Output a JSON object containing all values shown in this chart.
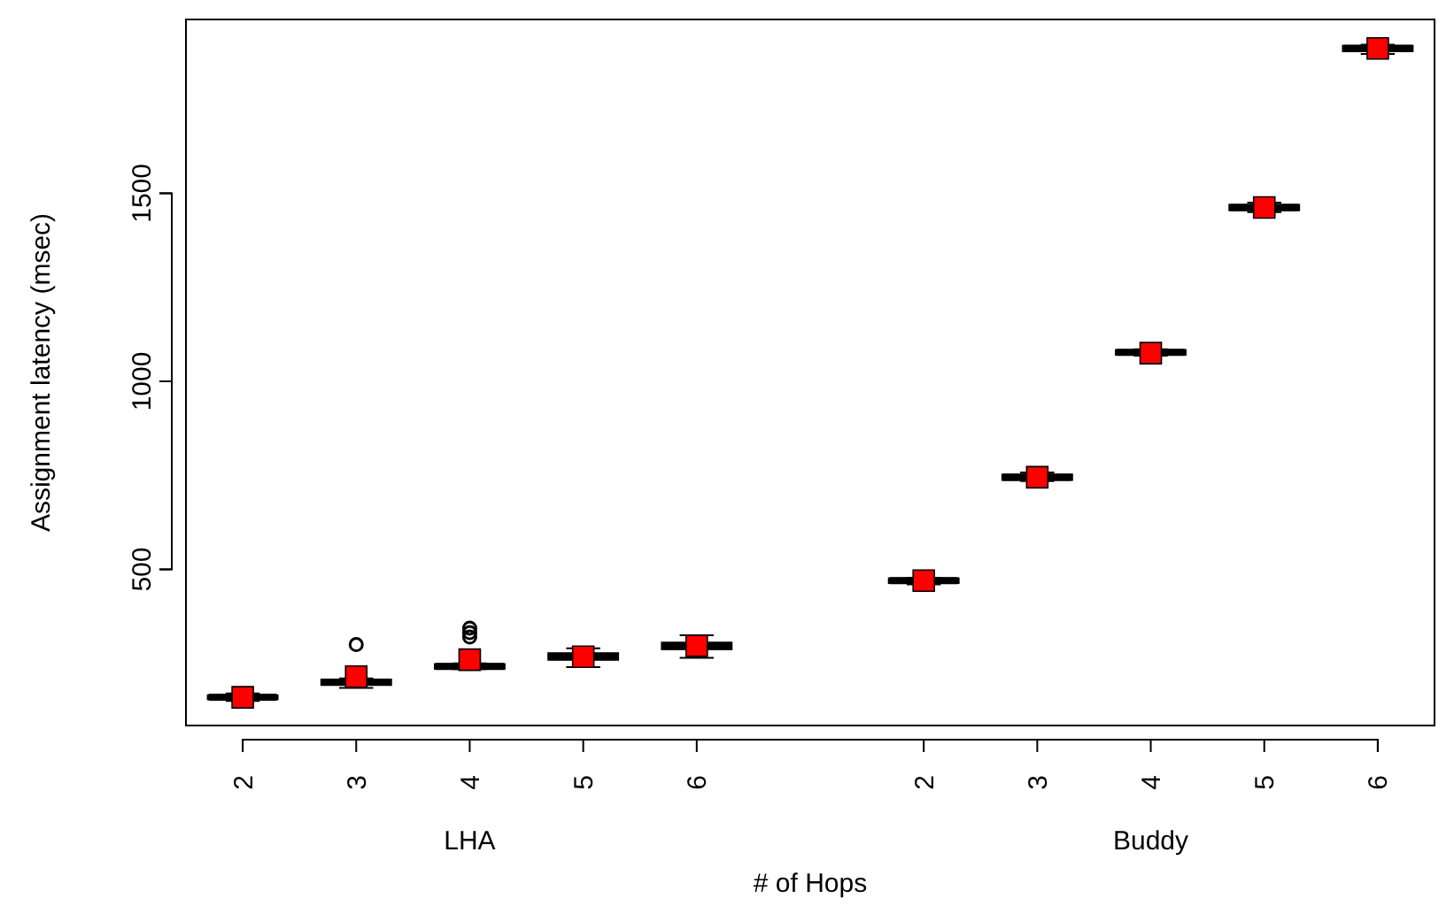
{
  "chart_data": {
    "type": "box",
    "xlabel": "# of Hops",
    "ylabel": "Assignment latency (msec)",
    "categories": [
      "2",
      "3",
      "4",
      "5",
      "6",
      null,
      "2",
      "3",
      "4",
      "5",
      "6"
    ],
    "annotations": [
      "LHA",
      "Buddy"
    ],
    "ylim": [
      85,
      1962
    ],
    "yticks": [
      500,
      1000,
      1500
    ],
    "marker": "square",
    "grid": false,
    "boxes": [
      {
        "low": 150,
        "q1": 157,
        "median": 160,
        "q3": 163,
        "high": 170,
        "mean": 160
      },
      {
        "low": 185,
        "q1": 195,
        "median": 200,
        "q3": 205,
        "high": 210,
        "mean": 215,
        "outliers": [
          300
        ]
      },
      {
        "low": 235,
        "q1": 238,
        "median": 242,
        "q3": 246,
        "high": 250,
        "mean": 260,
        "outliers": [
          320,
          332,
          344
        ]
      },
      {
        "low": 240,
        "q1": 262,
        "median": 268,
        "q3": 275,
        "high": 290,
        "mean": 268
      },
      {
        "low": 265,
        "q1": 290,
        "median": 297,
        "q3": 303,
        "high": 325,
        "mean": 297
      },
      null,
      {
        "low": 460,
        "q1": 466,
        "median": 470,
        "q3": 474,
        "high": 478,
        "mean": 470
      },
      {
        "low": 735,
        "q1": 740,
        "median": 745,
        "q3": 750,
        "high": 758,
        "mean": 745
      },
      {
        "low": 1068,
        "q1": 1073,
        "median": 1077,
        "q3": 1081,
        "high": 1085,
        "mean": 1075
      },
      {
        "low": 1450,
        "q1": 1457,
        "median": 1462,
        "q3": 1467,
        "high": 1475,
        "mean": 1462
      },
      {
        "low": 1870,
        "q1": 1880,
        "median": 1885,
        "q3": 1890,
        "high": 1895,
        "mean": 1885
      }
    ]
  }
}
